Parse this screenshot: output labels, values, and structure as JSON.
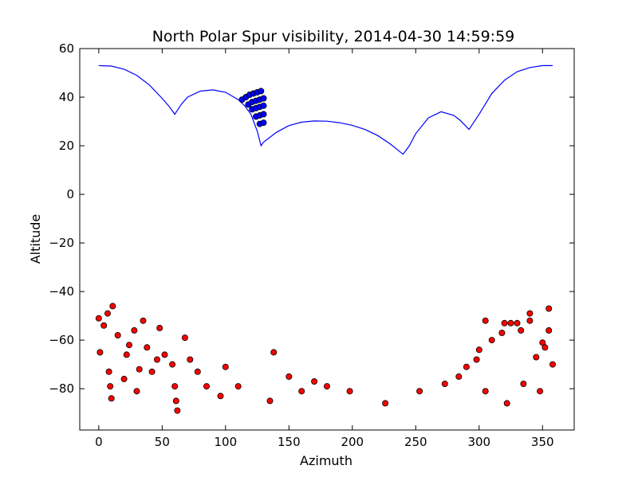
{
  "chart_data": {
    "type": "scatter",
    "title": "North Polar Spur visibility, 2014-04-30 14:59:59",
    "xlabel": "Azimuth",
    "ylabel": "Altitude",
    "xlim": [
      -15,
      375
    ],
    "ylim": [
      -97,
      60
    ],
    "xticks": [
      0,
      50,
      100,
      150,
      200,
      250,
      300,
      350
    ],
    "yticks": [
      60,
      40,
      20,
      0,
      -20,
      -40,
      -60,
      -80
    ],
    "grid": false,
    "legend": "none",
    "colors": {
      "horizon_line": "#0000ff",
      "visible_points": "#0000ff",
      "hidden_points": "#ff0000",
      "point_edge": "#000000"
    },
    "series": [
      {
        "type": "line",
        "color": "#0000ff",
        "x": [
          0,
          10,
          20,
          30,
          40,
          50,
          55,
          60,
          65,
          70,
          80,
          90,
          100,
          110,
          115,
          120,
          125,
          128,
          130,
          140,
          150,
          160,
          170,
          180,
          190,
          200,
          210,
          220,
          230,
          240,
          245,
          250,
          260,
          270,
          280,
          285,
          292,
          300,
          310,
          320,
          330,
          340,
          350,
          358
        ],
        "y": [
          53,
          52.8,
          51.5,
          49,
          45,
          39.5,
          36.5,
          33,
          37,
          40,
          42.5,
          43,
          42,
          39,
          36.5,
          33,
          26,
          20,
          21.5,
          25.5,
          28.3,
          29.7,
          30.2,
          30.1,
          29.5,
          28.4,
          26.7,
          24.2,
          20.7,
          16.5,
          20,
          25,
          31.5,
          34,
          32.5,
          30.5,
          26.7,
          33,
          41.5,
          47,
          50.5,
          52.2,
          53,
          53
        ]
      },
      {
        "type": "scatter",
        "color": "#0000ff",
        "x": [
          113,
          116,
          119,
          122,
          125,
          128,
          118,
          121,
          124,
          127,
          130,
          121,
          124,
          127,
          130,
          124,
          127,
          130,
          127,
          130
        ],
        "y": [
          39,
          40,
          41,
          41.5,
          42,
          42.5,
          37,
          38,
          38.5,
          39,
          39.5,
          35,
          35.5,
          36,
          36.5,
          32,
          32.5,
          33,
          29,
          29.5
        ]
      },
      {
        "type": "scatter",
        "color": "#ff0000",
        "x": [
          0,
          1,
          4,
          7,
          8,
          9,
          10,
          11,
          15,
          20,
          22,
          24,
          28,
          30,
          32,
          35,
          38,
          42,
          46,
          48,
          52,
          58,
          60,
          61,
          62,
          68,
          72,
          78,
          85,
          96,
          100,
          110,
          135,
          138,
          150,
          160,
          170,
          180,
          198,
          226,
          253,
          273,
          284,
          290,
          298,
          305,
          310,
          320,
          330,
          340,
          348,
          355,
          358,
          350,
          345,
          335,
          322,
          305,
          300,
          318,
          325,
          333,
          340,
          355,
          352
        ],
        "y": [
          -51,
          -65,
          -54,
          -49,
          -73,
          -79,
          -84,
          -46,
          -58,
          -76,
          -66,
          -62,
          -56,
          -81,
          -72,
          -52,
          -63,
          -73,
          -68,
          -55,
          -66,
          -70,
          -79,
          -85,
          -89,
          -59,
          -68,
          -73,
          -79,
          -83,
          -71,
          -79,
          -85,
          -65,
          -75,
          -81,
          -77,
          -79,
          -81,
          -86,
          -81,
          -78,
          -75,
          -71,
          -68,
          -52,
          -60,
          -53,
          -53,
          -49,
          -81,
          -56,
          -70,
          -61,
          -67,
          -78,
          -86,
          -81,
          -64,
          -57,
          -53,
          -56,
          -52,
          -47,
          -63
        ]
      }
    ]
  }
}
